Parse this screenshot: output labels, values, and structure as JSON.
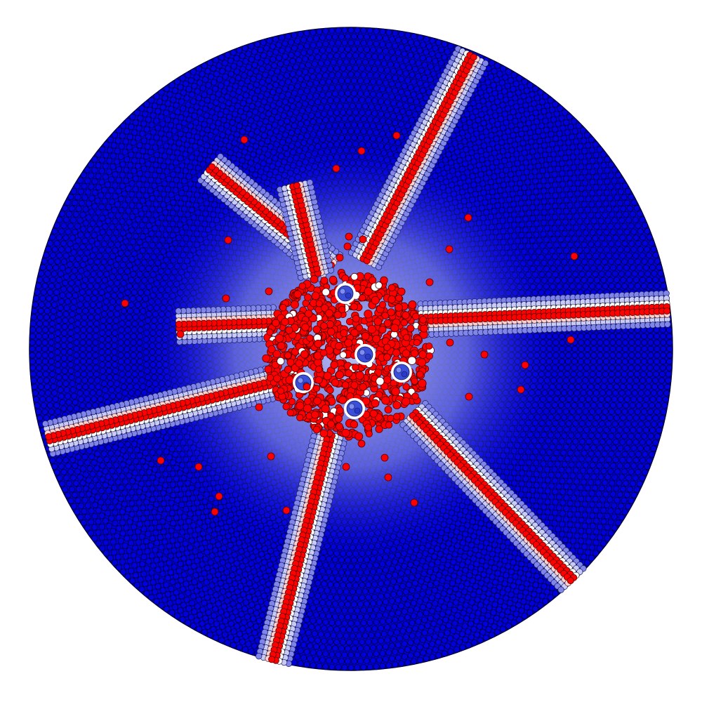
{
  "image": {
    "subject": "particle-disc-fracture",
    "colors": {
      "background": "#ffffff",
      "intact": "#0000dd",
      "intact_edge": "#000033",
      "transition": "#c8ccf4",
      "damaged": "#ff0000",
      "damaged_edge": "#550000",
      "highlight": "#ffffff"
    },
    "crack_count": 8,
    "hole_count": 5
  }
}
